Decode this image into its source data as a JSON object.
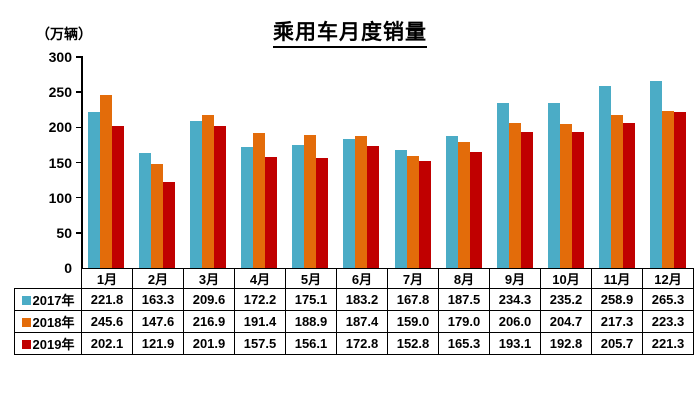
{
  "chart_data": {
    "type": "bar",
    "title": "乘用车月度销量",
    "ylabel": "（万辆）",
    "xlabel": "",
    "ylim": [
      0,
      300
    ],
    "yticks": [
      0,
      50,
      100,
      150,
      200,
      250,
      300
    ],
    "grid": false,
    "legend_position": "table-left",
    "categories": [
      "1月",
      "2月",
      "3月",
      "4月",
      "5月",
      "6月",
      "7月",
      "8月",
      "9月",
      "10月",
      "11月",
      "12月"
    ],
    "series": [
      {
        "name": "2017年",
        "color": "#4BACC6",
        "values": [
          221.8,
          163.3,
          209.6,
          172.2,
          175.1,
          183.2,
          167.8,
          187.5,
          234.3,
          235.2,
          258.9,
          265.3
        ]
      },
      {
        "name": "2018年",
        "color": "#E36C0A",
        "values": [
          245.6,
          147.6,
          216.9,
          191.4,
          188.9,
          187.4,
          159.0,
          179.0,
          206.0,
          204.7,
          217.3,
          223.3
        ]
      },
      {
        "name": "2019年",
        "color": "#C00000",
        "values": [
          202.1,
          121.9,
          201.9,
          157.5,
          156.1,
          172.8,
          152.8,
          165.3,
          193.1,
          192.8,
          205.7,
          221.3
        ]
      }
    ]
  }
}
